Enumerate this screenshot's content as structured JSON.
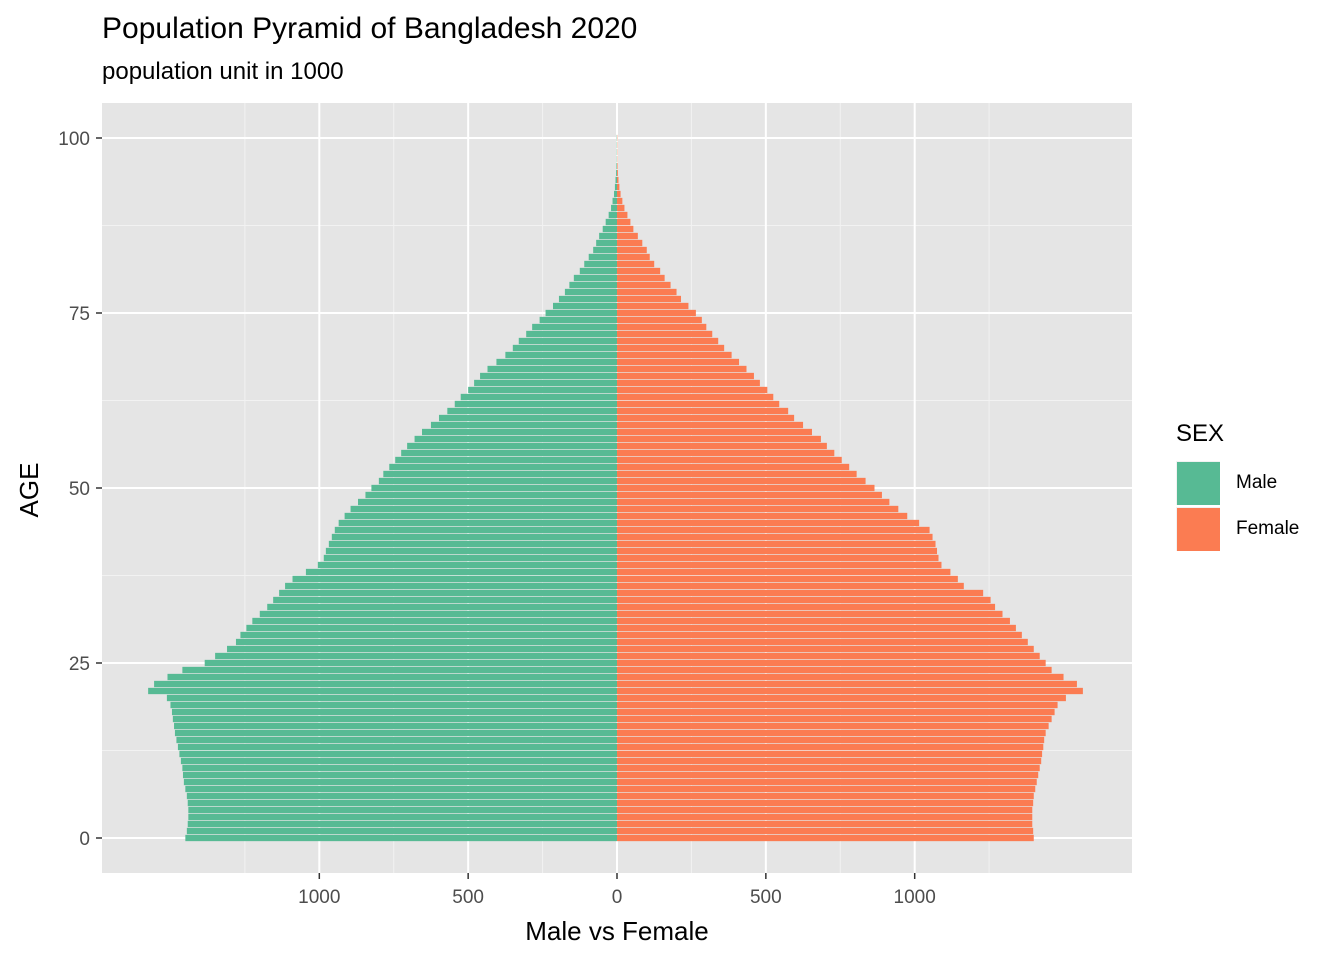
{
  "chart_data": {
    "type": "bar",
    "orientation": "horizontal-pyramid",
    "title": "Population Pyramid of Bangladesh 2020",
    "subtitle": "population unit in 1000",
    "xlabel": "Male vs Female",
    "ylabel": "AGE",
    "xlim": [
      -1730,
      1730
    ],
    "ylim": [
      -5,
      105
    ],
    "x_ticks": [
      -1000,
      -500,
      0,
      500,
      1000
    ],
    "x_tick_labels": [
      "1000",
      "500",
      "0",
      "500",
      "1000"
    ],
    "y_ticks": [
      0,
      25,
      50,
      75,
      100
    ],
    "y_tick_labels": [
      "0",
      "25",
      "50",
      "75",
      "100"
    ],
    "grid": true,
    "legend_position": "right",
    "legend_title": "SEX",
    "ages": [
      0,
      1,
      2,
      3,
      4,
      5,
      6,
      7,
      8,
      9,
      10,
      11,
      12,
      13,
      14,
      15,
      16,
      17,
      18,
      19,
      20,
      21,
      22,
      23,
      24,
      25,
      26,
      27,
      28,
      29,
      30,
      31,
      32,
      33,
      34,
      35,
      36,
      37,
      38,
      39,
      40,
      41,
      42,
      43,
      44,
      45,
      46,
      47,
      48,
      49,
      50,
      51,
      52,
      53,
      54,
      55,
      56,
      57,
      58,
      59,
      60,
      61,
      62,
      63,
      64,
      65,
      66,
      67,
      68,
      69,
      70,
      71,
      72,
      73,
      74,
      75,
      76,
      77,
      78,
      79,
      80,
      81,
      82,
      83,
      84,
      85,
      86,
      87,
      88,
      89,
      90,
      91,
      92,
      93,
      94,
      95,
      96,
      97,
      98,
      99,
      100
    ],
    "series": [
      {
        "name": "Male",
        "color": "#57ba94",
        "values": [
          1450,
          1445,
          1442,
          1440,
          1440,
          1442,
          1445,
          1450,
          1455,
          1458,
          1460,
          1465,
          1470,
          1475,
          1480,
          1485,
          1488,
          1492,
          1495,
          1500,
          1512,
          1575,
          1555,
          1510,
          1460,
          1385,
          1350,
          1310,
          1280,
          1265,
          1245,
          1225,
          1200,
          1175,
          1155,
          1135,
          1115,
          1090,
          1045,
          1005,
          985,
          978,
          968,
          958,
          948,
          935,
          915,
          895,
          870,
          845,
          825,
          800,
          785,
          765,
          745,
          725,
          705,
          680,
          655,
          625,
          598,
          570,
          545,
          525,
          500,
          480,
          460,
          435,
          405,
          375,
          350,
          330,
          305,
          285,
          260,
          240,
          215,
          195,
          175,
          160,
          145,
          125,
          110,
          95,
          80,
          70,
          60,
          48,
          38,
          28,
          20,
          15,
          10,
          7,
          5,
          3,
          2,
          1,
          1,
          1,
          1
        ]
      },
      {
        "name": "Female",
        "color": "#fb7c52",
        "values": [
          1400,
          1398,
          1395,
          1395,
          1395,
          1398,
          1400,
          1405,
          1410,
          1415,
          1420,
          1425,
          1428,
          1432,
          1435,
          1440,
          1450,
          1460,
          1470,
          1480,
          1508,
          1565,
          1545,
          1500,
          1460,
          1440,
          1420,
          1400,
          1380,
          1360,
          1340,
          1320,
          1295,
          1270,
          1255,
          1230,
          1165,
          1145,
          1120,
          1090,
          1080,
          1075,
          1070,
          1060,
          1050,
          1015,
          975,
          945,
          915,
          890,
          865,
          835,
          805,
          780,
          755,
          730,
          705,
          685,
          655,
          625,
          595,
          575,
          545,
          525,
          505,
          480,
          460,
          435,
          410,
          385,
          360,
          340,
          320,
          300,
          285,
          265,
          240,
          215,
          200,
          180,
          160,
          145,
          125,
          110,
          100,
          85,
          70,
          55,
          45,
          35,
          25,
          18,
          12,
          8,
          5,
          3,
          2,
          1,
          1,
          1,
          1
        ]
      }
    ]
  }
}
